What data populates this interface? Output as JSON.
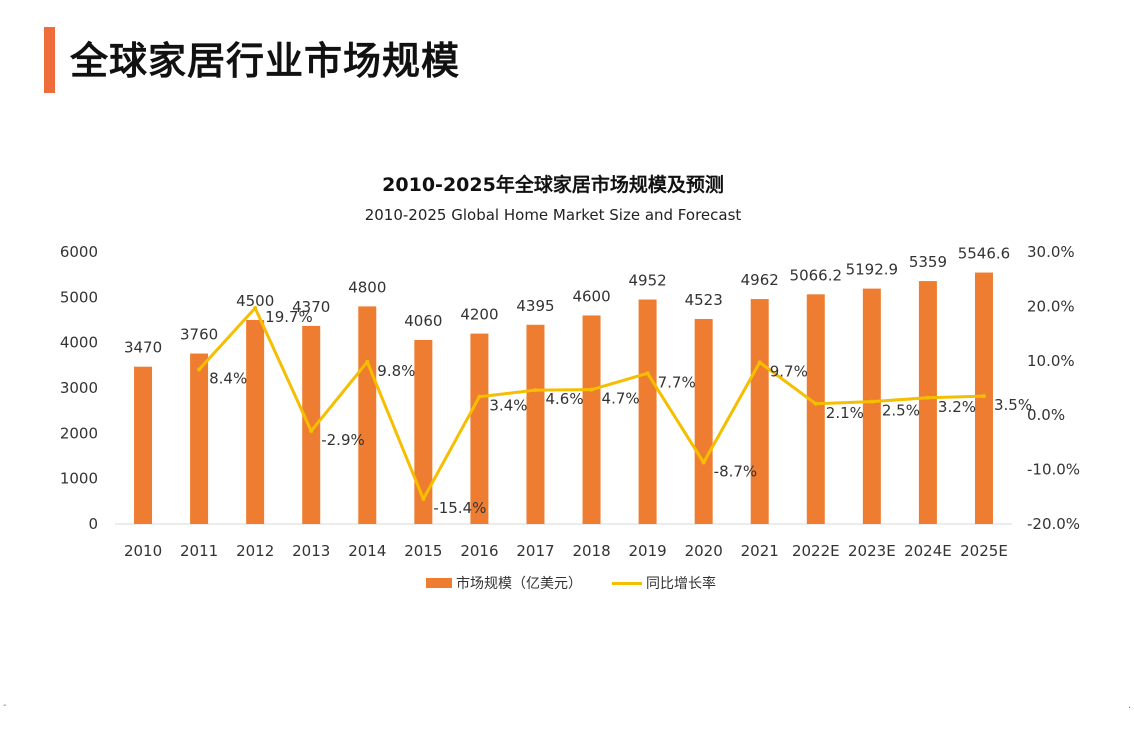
{
  "page": {
    "title": "全球家居行业市场规模"
  },
  "colors": {
    "accent": "#EE6D3A",
    "bar": "#EE7D31",
    "line": "#F5BE00",
    "axis": "#D9D9D9"
  },
  "chart_data": {
    "type": "bar+line",
    "title": "2010-2025年全球家居市场规模及预测",
    "subtitle": "2010-2025 Global Home Market Size and Forecast",
    "categories": [
      "2010",
      "2011",
      "2012",
      "2013",
      "2014",
      "2015",
      "2016",
      "2017",
      "2018",
      "2019",
      "2020",
      "2021",
      "2022E",
      "2023E",
      "2024E",
      "2025E"
    ],
    "series": [
      {
        "name": "市场规模（亿美元）",
        "type": "bar",
        "axis": "left",
        "values": [
          3470,
          3760,
          4500,
          4370,
          4800,
          4060,
          4200,
          4395,
          4600,
          4952,
          4523,
          4962,
          5066.2,
          5192.9,
          5359,
          5546.6
        ],
        "labels": [
          "3470",
          "3760",
          "4500",
          "4370",
          "4800",
          "4060",
          "4200",
          "4395",
          "4600",
          "4952",
          "4523",
          "4962",
          "5066.2",
          "5192.9",
          "5359",
          "5546.6"
        ]
      },
      {
        "name": "同比增长率",
        "type": "line",
        "axis": "right",
        "values": [
          null,
          8.4,
          19.7,
          -2.9,
          9.8,
          -15.4,
          3.4,
          4.6,
          4.7,
          7.7,
          -8.7,
          9.7,
          2.1,
          2.5,
          3.2,
          3.5
        ],
        "labels": [
          null,
          "8.4%",
          "19.7%",
          "-2.9%",
          "9.8%",
          "-15.4%",
          "3.4%",
          "4.6%",
          "4.7%",
          "7.7%",
          "-8.7%",
          "9.7%",
          "2.1%",
          "2.5%",
          "3.2%",
          "3.5%"
        ]
      }
    ],
    "y_left": {
      "min": 0,
      "max": 6000,
      "ticks": [
        "6000",
        "5000",
        "4000",
        "3000",
        "2000",
        "1000",
        "0"
      ]
    },
    "y_right": {
      "min": -20,
      "max": 30,
      "ticks": [
        "30.0%",
        "20.0%",
        "10.0%",
        "0.0%",
        "-10.0%",
        "-20.0%"
      ]
    },
    "legend": {
      "position": "bottom",
      "bar_label": "市场规模（亿美元）",
      "line_label": "同比增长率"
    }
  },
  "footer": {
    "left_mark": "-",
    "right_mark": "."
  }
}
